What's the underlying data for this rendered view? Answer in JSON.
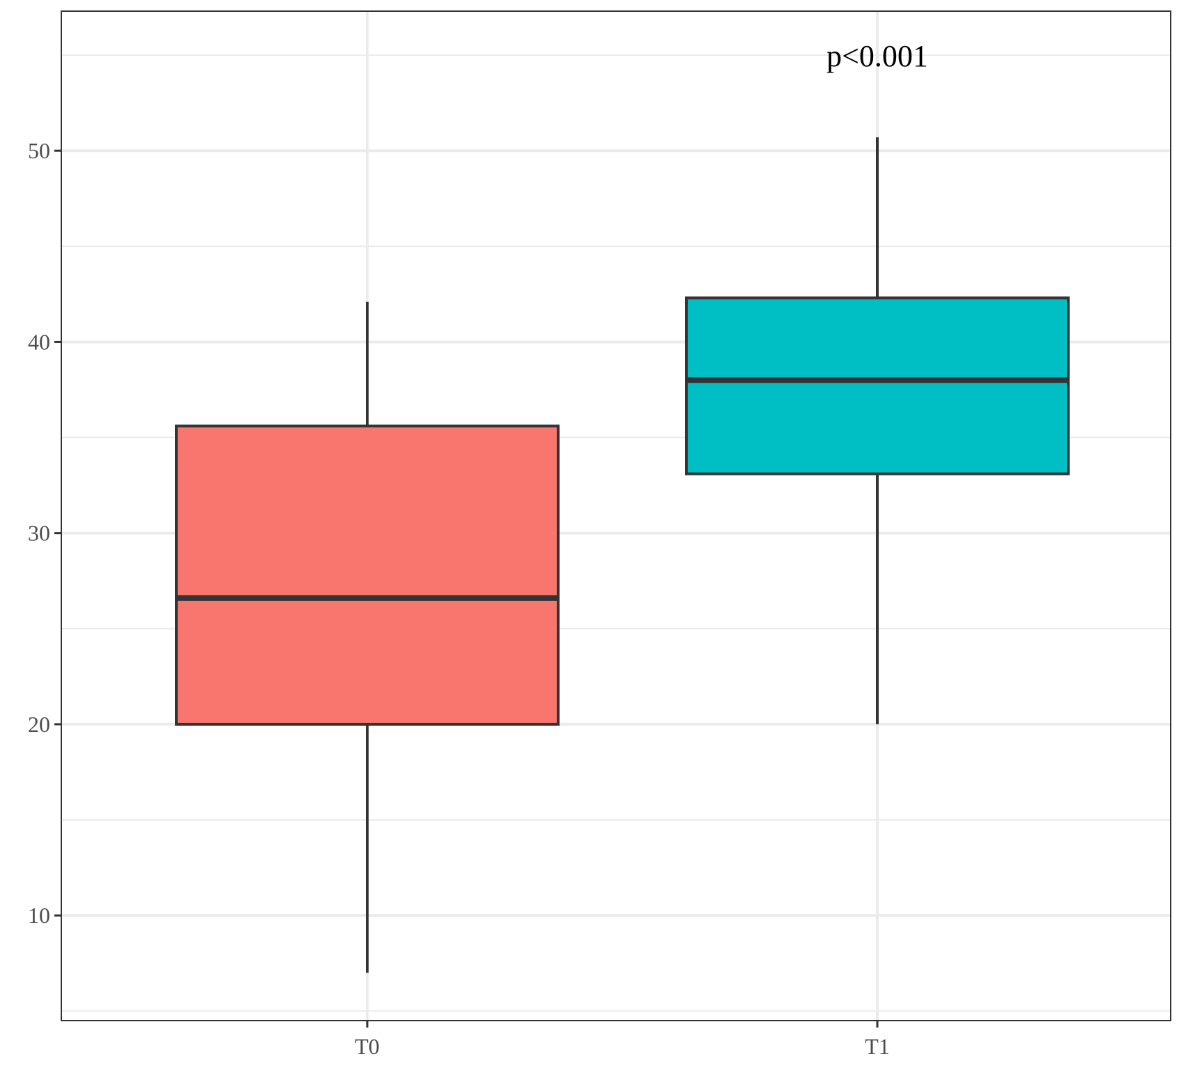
{
  "chart_data": {
    "type": "box",
    "categories": [
      "T0",
      "T1"
    ],
    "boxes": [
      {
        "category": "T0",
        "whisker_low": 7,
        "q1": 20,
        "median": 26.6,
        "q3": 35.6,
        "whisker_high": 42.1,
        "color": "#F8766D"
      },
      {
        "category": "T1",
        "whisker_low": 20,
        "q1": 33.1,
        "median": 38,
        "q3": 42.3,
        "whisker_high": 50.7,
        "color": "#00BFC4"
      }
    ],
    "y_ticks": [
      10,
      20,
      30,
      40,
      50
    ],
    "y_minor": [
      5,
      15,
      25,
      35,
      45,
      55
    ],
    "ylim": [
      4.5,
      57.3
    ],
    "annotation": {
      "text": "p<0.001",
      "category": "T1",
      "y": 55
    },
    "grid": true,
    "xlabel": "",
    "ylabel": "",
    "title": ""
  }
}
